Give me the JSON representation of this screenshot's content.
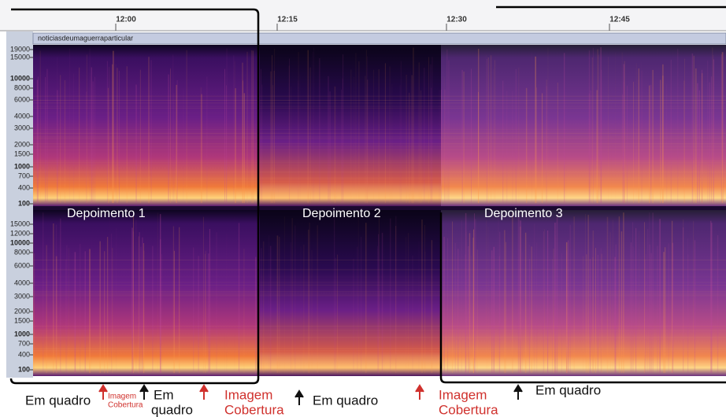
{
  "timeline": [
    "12:00",
    "12:15",
    "12:30",
    "12:45"
  ],
  "track_name": "noticiasdeumaguerraparticular",
  "frequency_labels": {
    "top": [
      "19000",
      "15000",
      "10000",
      "8000",
      "6000",
      "4000",
      "3000",
      "2000",
      "1500",
      "1000",
      "700",
      "400",
      "100"
    ],
    "bottom": [
      "15000",
      "12000",
      "10000",
      "8000",
      "6000",
      "4000",
      "3000",
      "2000",
      "1500",
      "1000",
      "700",
      "400",
      "100"
    ]
  },
  "sections": [
    "Depoimento 1",
    "Depoimento 2",
    "Depoimento 3"
  ],
  "annotations": [
    {
      "lines": [
        "Em quadro"
      ]
    },
    {
      "lines": [
        "Imagem",
        "Cobertura"
      ]
    },
    {
      "lines": [
        "Em",
        "quadro"
      ]
    },
    {
      "lines": [
        "Imagem",
        "Cobertura"
      ]
    },
    {
      "lines": [
        "Em quadro"
      ]
    },
    {
      "lines": [
        "Imagem",
        "Cobertura"
      ]
    },
    {
      "lines": [
        "Em quadro"
      ]
    }
  ]
}
